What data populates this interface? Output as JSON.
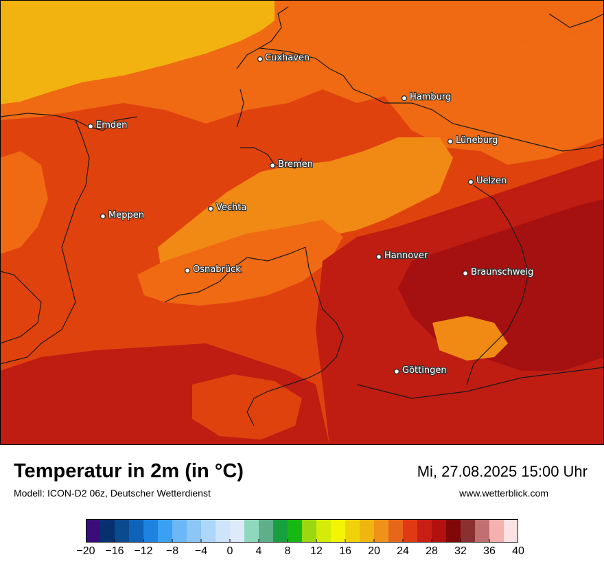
{
  "map": {
    "cities": [
      {
        "name": "Cuxhaven"
      },
      {
        "name": "Hamburg"
      },
      {
        "name": "Emden"
      },
      {
        "name": "Lüneburg"
      },
      {
        "name": "Bremen"
      },
      {
        "name": "Uelzen"
      },
      {
        "name": "Vechta"
      },
      {
        "name": "Meppen"
      },
      {
        "name": "Hannover"
      },
      {
        "name": "Osnabrück"
      },
      {
        "name": "Braunschweig"
      },
      {
        "name": "Göttingen"
      }
    ]
  },
  "footer": {
    "title": "Temperatur in 2m (in °C)",
    "subtitle": "Modell: ICON-D2 06z, Deutscher Wetterdienst",
    "datetime": "Mi, 27.08.2025 15:00 Uhr",
    "website": "www.wetterblick.com"
  },
  "legend": {
    "ticks": [
      "−20",
      "−16",
      "−12",
      "−8",
      "−4",
      "0",
      "4",
      "8",
      "12",
      "16",
      "20",
      "24",
      "28",
      "32",
      "36",
      "40"
    ],
    "colors": [
      "#3a0d7a",
      "#06306e",
      "#0b4a8e",
      "#0e63b8",
      "#1e82e0",
      "#3aa0f2",
      "#6cb7f5",
      "#8cc6f6",
      "#aed6f8",
      "#cde4fa",
      "#dceafb",
      "#8fd8bd",
      "#5fb08a",
      "#18a040",
      "#16b814",
      "#9bd80f",
      "#d4ec0a",
      "#f4f405",
      "#f0d20a",
      "#f0b50f",
      "#f0921a",
      "#e8661a",
      "#e03a14",
      "#c91e14",
      "#b31010",
      "#800808",
      "#8a3030",
      "#c07070",
      "#f5b0b0",
      "#fde2e4"
    ]
  },
  "colors": {
    "sea": "#f2b210",
    "land_base": "#e0420e",
    "warm_light": "#f08a14",
    "warm_mid": "#ef6a12",
    "hot": "#bf1c12",
    "hottest": "#a51010",
    "border": "#1a1a1a"
  }
}
